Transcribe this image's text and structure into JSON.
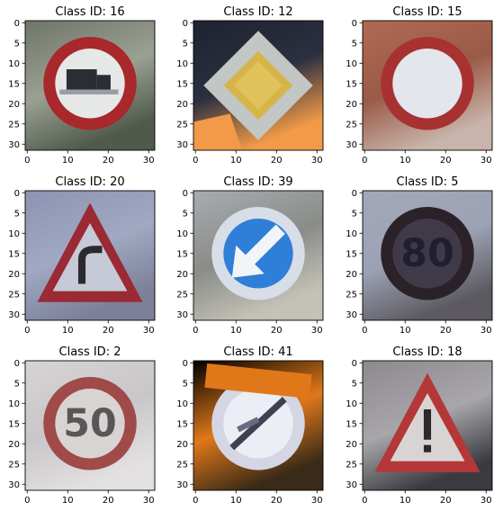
{
  "chart_data": [
    {
      "type": "image",
      "title": "Class ID: 16",
      "sign": {
        "shape": "circle",
        "content": "truck",
        "ring": "#a8282c",
        "fill": "#e6e8e8",
        "symbol": "#2c2c34",
        "background": [
          "#6e7668",
          "#9aa092",
          "#4f5a4a"
        ]
      },
      "xticks": [
        0,
        10,
        20,
        30
      ],
      "yticks": [
        0,
        5,
        10,
        15,
        20,
        25,
        30
      ],
      "xlim": [
        -0.5,
        31.5
      ],
      "ylim": [
        31.5,
        -0.5
      ]
    },
    {
      "type": "image",
      "title": "Class ID: 12",
      "sign": {
        "shape": "diamond",
        "content": "priority",
        "ring": "#c2c6c4",
        "fill": "#d6b44a",
        "symbol": "#e0c25a",
        "background": [
          "#1e2230",
          "#2b3040",
          "#f29a48"
        ]
      },
      "xticks": [
        0,
        10,
        20,
        30
      ],
      "yticks": [
        0,
        5,
        10,
        15,
        20,
        25,
        30
      ],
      "xlim": [
        -0.5,
        31.5
      ],
      "ylim": [
        31.5,
        -0.5
      ]
    },
    {
      "type": "image",
      "title": "Class ID: 15",
      "sign": {
        "shape": "circle",
        "content": "empty",
        "ring": "#a83232",
        "fill": "#e4e6ee",
        "symbol": "#e4e6ee",
        "background": [
          "#b06a52",
          "#9a5a48",
          "#c8b4aa"
        ]
      },
      "xticks": [
        0,
        10,
        20,
        30
      ],
      "yticks": [
        0,
        5,
        10,
        15,
        20,
        25,
        30
      ],
      "xlim": [
        -0.5,
        31.5
      ],
      "ylim": [
        31.5,
        -0.5
      ]
    },
    {
      "type": "image",
      "title": "Class ID: 20",
      "sign": {
        "shape": "triangle",
        "content": "curve-right",
        "ring": "#9a2a34",
        "fill": "#c6cad6",
        "symbol": "#2a2a30",
        "background": [
          "#8c94b2",
          "#a0a8c2",
          "#7c8098"
        ]
      },
      "xticks": [
        0,
        10,
        20,
        30
      ],
      "yticks": [
        0,
        5,
        10,
        15,
        20,
        25,
        30
      ],
      "xlim": [
        -0.5,
        31.5
      ],
      "ylim": [
        31.5,
        -0.5
      ]
    },
    {
      "type": "image",
      "title": "Class ID: 39",
      "sign": {
        "shape": "circle",
        "content": "keep-left",
        "ring": "#d8dee8",
        "fill": "#2f7fd8",
        "symbol": "#f2f4f8",
        "background": [
          "#a8acb0",
          "#8a8c88",
          "#c4c2b8"
        ]
      },
      "xticks": [
        0,
        10,
        20,
        30
      ],
      "yticks": [
        0,
        5,
        10,
        15,
        20,
        25,
        30
      ],
      "xlim": [
        -0.5,
        31.5
      ],
      "ylim": [
        31.5,
        -0.5
      ]
    },
    {
      "type": "image",
      "title": "Class ID: 5",
      "sign": {
        "shape": "circle",
        "content": "80",
        "ring": "#2a2228",
        "fill": "#403a48",
        "symbol": "#1e2030",
        "background": [
          "#a2a8b8",
          "#9ca2b4",
          "#5c5a60"
        ]
      },
      "xticks": [
        0,
        10,
        20,
        30
      ],
      "yticks": [
        0,
        5,
        10,
        15,
        20,
        25,
        30
      ],
      "xlim": [
        -0.5,
        31.5
      ],
      "ylim": [
        31.5,
        -0.5
      ]
    },
    {
      "type": "image",
      "title": "Class ID: 2",
      "sign": {
        "shape": "circle",
        "content": "50",
        "ring": "#a04a4a",
        "fill": "#d8d4d2",
        "symbol": "#5a5658",
        "background": [
          "#d6d4d4",
          "#c8c6c8",
          "#e2e0e0"
        ]
      },
      "xticks": [
        0,
        10,
        20,
        30
      ],
      "yticks": [
        0,
        5,
        10,
        15,
        20,
        25,
        30
      ],
      "xlim": [
        -0.5,
        31.5
      ],
      "ylim": [
        31.5,
        -0.5
      ]
    },
    {
      "type": "image",
      "title": "Class ID: 41",
      "sign": {
        "shape": "circle",
        "content": "end-no-passing",
        "ring": "#d4d6e4",
        "fill": "#eceef6",
        "symbol": "#404050",
        "background": [
          "#000000",
          "#e0781a",
          "#3a2a18"
        ]
      },
      "xticks": [
        0,
        10,
        20,
        30
      ],
      "yticks": [
        0,
        5,
        10,
        15,
        20,
        25,
        30
      ],
      "xlim": [
        -0.5,
        31.5
      ],
      "ylim": [
        31.5,
        -0.5
      ]
    },
    {
      "type": "image",
      "title": "Class ID: 18",
      "sign": {
        "shape": "triangle",
        "content": "exclamation",
        "ring": "#b43838",
        "fill": "#d8d4d4",
        "symbol": "#2a2a2a",
        "background": [
          "#8c8a8e",
          "#a8a6aa",
          "#3a3a40"
        ]
      },
      "xticks": [
        0,
        10,
        20,
        30
      ],
      "yticks": [
        0,
        5,
        10,
        15,
        20,
        25,
        30
      ],
      "xlim": [
        -0.5,
        31.5
      ],
      "ylim": [
        31.5,
        -0.5
      ]
    }
  ]
}
